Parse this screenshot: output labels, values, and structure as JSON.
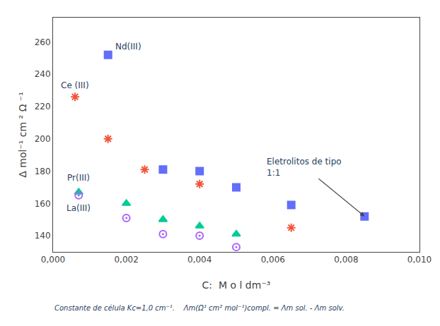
{
  "chart_data": {
    "type": "scatter",
    "xlabel": "C:  M o l dm⁻³",
    "ylabel": "Δ mol⁻¹ cm ² Ω ⁻¹",
    "caption": "Constante de célula Kc=1,0 cm⁻¹.    Λm(Ω¹ cm² mol⁻¹)compl. = Λm sol. - Λm solv.",
    "xlim": [
      0.0,
      0.01
    ],
    "ylim": [
      130,
      275
    ],
    "xticks": [
      {
        "value": 0.0,
        "label": "0,000"
      },
      {
        "value": 0.002,
        "label": "0,002"
      },
      {
        "value": 0.004,
        "label": "0,004"
      },
      {
        "value": 0.006,
        "label": "0,006"
      },
      {
        "value": 0.008,
        "label": "0,008"
      },
      {
        "value": 0.01,
        "label": "0,010"
      }
    ],
    "yticks": [
      140,
      160,
      180,
      200,
      220,
      240,
      260
    ],
    "grid": false,
    "series": [
      {
        "name": "Nd(III)",
        "marker": "square",
        "x": [
          0.0015,
          0.003,
          0.004,
          0.005,
          0.0065,
          0.0085
        ],
        "values": [
          252,
          181,
          180,
          170,
          159,
          152
        ]
      },
      {
        "name": "Ce (III)",
        "marker": "asterisk",
        "x": [
          0.0006,
          0.0015,
          0.0025,
          0.004,
          0.0065
        ],
        "values": [
          226,
          200,
          181,
          172,
          145
        ]
      },
      {
        "name": "Pr(III)",
        "marker": "triangle",
        "x": [
          0.0007,
          0.002,
          0.003,
          0.004,
          0.005
        ],
        "values": [
          167,
          160,
          150,
          146,
          141
        ]
      },
      {
        "name": "La(III)",
        "marker": "circle-dot",
        "x": [
          0.0007,
          0.002,
          0.003,
          0.004,
          0.005
        ],
        "values": [
          165,
          151,
          141,
          140,
          133
        ]
      }
    ],
    "annotations": [
      {
        "text": "Eletrolitos de tipo\n1:1",
        "x": 0.0085,
        "y": 152
      }
    ]
  }
}
